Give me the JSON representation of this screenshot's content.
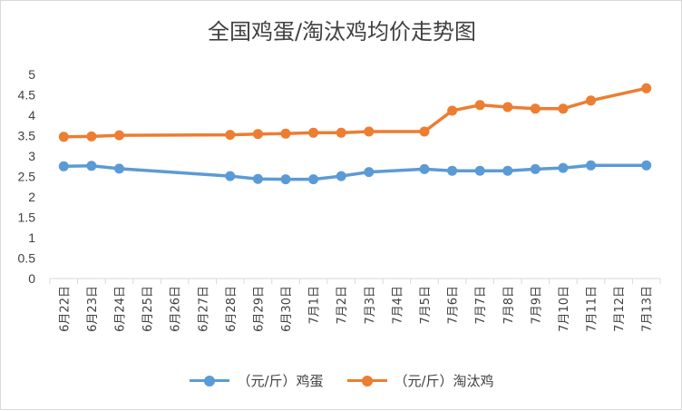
{
  "chart_data": {
    "type": "line",
    "title": "全国鸡蛋/淘汰鸡均价走势图",
    "categories": [
      "6月22日",
      "6月23日",
      "6月24日",
      "6月25日",
      "6月26日",
      "6月27日",
      "6月28日",
      "6月29日",
      "6月30日",
      "7月1日",
      "7月2日",
      "7月3日",
      "7月4日",
      "7月5日",
      "7月6日",
      "7月7日",
      "7月8日",
      "7月9日",
      "7月10日",
      "7月11日",
      "7月12日",
      "7月13日"
    ],
    "y_ticks": [
      "0",
      "0.5",
      "1",
      "1.5",
      "2",
      "2.5",
      "3",
      "3.5",
      "4",
      "4.5",
      "5"
    ],
    "ylim": [
      0,
      5
    ],
    "grid": false,
    "legend_position": "bottom",
    "series": [
      {
        "name": "（元/斤）鸡蛋",
        "color": "#5b9bd5",
        "values": [
          2.75,
          2.76,
          2.69,
          null,
          null,
          null,
          2.51,
          2.44,
          2.43,
          2.43,
          2.51,
          2.61,
          null,
          2.68,
          2.64,
          2.64,
          2.64,
          2.68,
          2.71,
          2.77,
          null,
          2.77
        ]
      },
      {
        "name": "（元/斤）淘汰鸡",
        "color": "#ed7d31",
        "values": [
          3.47,
          3.48,
          3.51,
          null,
          null,
          null,
          3.52,
          3.54,
          3.55,
          3.57,
          3.57,
          3.6,
          null,
          3.6,
          4.11,
          4.25,
          4.2,
          4.16,
          4.16,
          4.36,
          null,
          4.66
        ]
      }
    ]
  }
}
